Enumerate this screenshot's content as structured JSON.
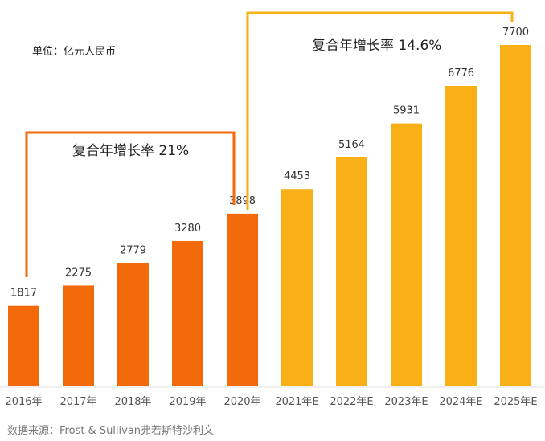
{
  "chart_data": {
    "type": "bar",
    "unit_label": "单位：亿元人民币",
    "categories": [
      "2016年",
      "2017年",
      "2018年",
      "2019年",
      "2020年",
      "2021年E",
      "2022年E",
      "2023年E",
      "2024年E",
      "2025年E"
    ],
    "values": [
      1817,
      2275,
      2779,
      3280,
      3898,
      4453,
      5164,
      5931,
      6776,
      7700
    ],
    "bar_colors": [
      "#F26A0A",
      "#F26A0A",
      "#F26A0A",
      "#F26A0A",
      "#F26A0A",
      "#F8B016",
      "#F8B016",
      "#F8B016",
      "#F8B016",
      "#F8B016"
    ],
    "annotations": [
      {
        "text": "复合年增长率 21%",
        "from": "2016年",
        "to": "2020年",
        "color": "#F26A0A"
      },
      {
        "text": "复合年增长率 14.6%",
        "from": "2020年",
        "to": "2025年E",
        "color": "#F8B016"
      }
    ],
    "ylim": [
      0,
      7700
    ],
    "grid": false,
    "source": "数据来源：Frost & Sullivan弗若斯特沙利文"
  }
}
